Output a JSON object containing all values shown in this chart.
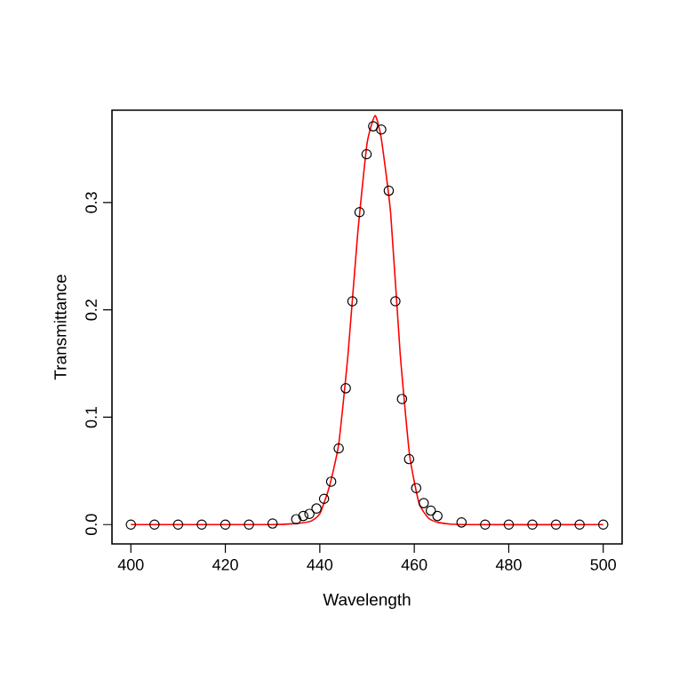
{
  "chart_data": {
    "type": "scatter",
    "xlabel": "Wavelength",
    "ylabel": "Transmittance",
    "xlim": [
      396,
      504
    ],
    "ylim": [
      -0.018,
      0.386
    ],
    "xticks": [
      400,
      420,
      440,
      460,
      480,
      500
    ],
    "yticks": [
      {
        "value": 0,
        "label": "0.0"
      },
      0.1,
      0.2,
      0.3
    ],
    "marker": "circle",
    "grid": false,
    "series": [
      {
        "color": "#000000",
        "x": [
          400,
          405,
          410,
          415,
          420,
          425,
          430,
          435,
          436.5,
          437.8,
          439.3,
          440.9,
          442.4,
          444,
          445.5,
          446.9,
          448.4,
          449.9,
          451.3,
          453,
          454.6,
          456,
          457.4,
          458.9,
          460.4,
          462,
          463.5,
          464.9,
          470,
          475,
          480,
          485,
          490,
          495,
          500
        ],
        "values": [
          0,
          0,
          0,
          0,
          0,
          0,
          0.001,
          0.005,
          0.008,
          0.01,
          0.015,
          0.024,
          0.04,
          0.071,
          0.127,
          0.208,
          0.291,
          0.345,
          0.371,
          0.368,
          0.311,
          0.208,
          0.117,
          0.061,
          0.034,
          0.02,
          0.013,
          0.008,
          0.002,
          0,
          0,
          0,
          0,
          0,
          0
        ]
      },
      {
        "type": "line",
        "marker": "none",
        "color": "#ff0000",
        "x": [
          400,
          430,
          435,
          438,
          440,
          442,
          444,
          446,
          448,
          450,
          451.7,
          453,
          455,
          457,
          459,
          461,
          463,
          465,
          470,
          500
        ],
        "values": [
          0,
          0,
          0.001,
          0.003,
          0.01,
          0.035,
          0.075,
          0.16,
          0.27,
          0.355,
          0.381,
          0.36,
          0.29,
          0.16,
          0.065,
          0.02,
          0.006,
          0.002,
          0,
          0
        ]
      }
    ]
  }
}
